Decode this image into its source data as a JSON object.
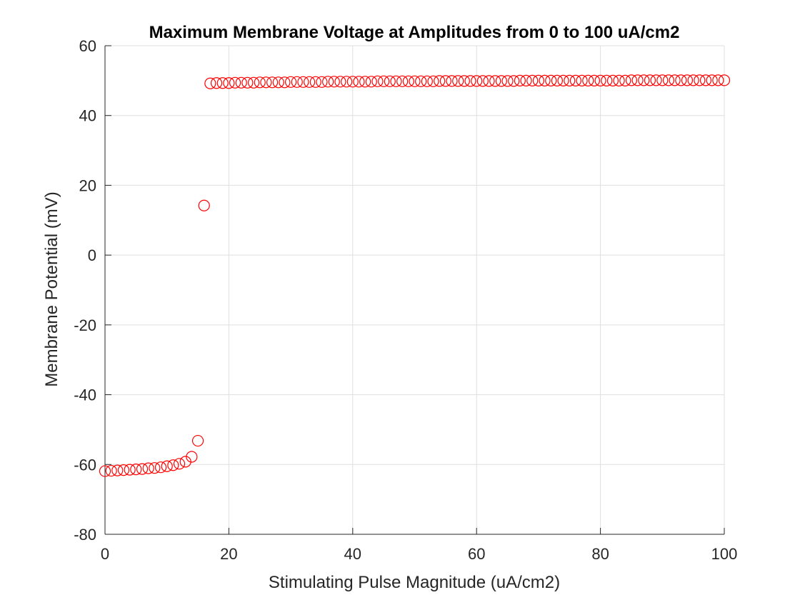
{
  "chart_data": {
    "type": "scatter",
    "title": "Maximum Membrane Voltage at Amplitudes from 0 to 100 uA/cm2",
    "xlabel": "Stimulating Pulse Magnitude (uA/cm2)",
    "ylabel": "Membrane Potential (mV)",
    "xlim": [
      0,
      100
    ],
    "ylim": [
      -80,
      60
    ],
    "xticks": [
      0,
      20,
      40,
      60,
      80,
      100
    ],
    "yticks": [
      -80,
      -60,
      -40,
      -20,
      0,
      20,
      40,
      60
    ],
    "xtick_labels": [
      "0",
      "20",
      "40",
      "60",
      "80",
      "100"
    ],
    "ytick_labels": [
      "-80",
      "-60",
      "-40",
      "-20",
      "0",
      "20",
      "40",
      "60"
    ],
    "grid": true,
    "marker": "circle-open",
    "color": "#ff0000",
    "series": [
      {
        "x": [
          0,
          1,
          2,
          3,
          4,
          5,
          6,
          7,
          8,
          9,
          10,
          11,
          12,
          13,
          14,
          15,
          16,
          17,
          18,
          19,
          20,
          21,
          22,
          23,
          24,
          25,
          26,
          27,
          28,
          29,
          30,
          31,
          32,
          33,
          34,
          35,
          36,
          37,
          38,
          39,
          40,
          41,
          42,
          43,
          44,
          45,
          46,
          47,
          48,
          49,
          50,
          51,
          52,
          53,
          54,
          55,
          56,
          57,
          58,
          59,
          60,
          61,
          62,
          63,
          64,
          65,
          66,
          67,
          68,
          69,
          70,
          71,
          72,
          73,
          74,
          75,
          76,
          77,
          78,
          79,
          80,
          81,
          82,
          83,
          84,
          85,
          86,
          87,
          88,
          89,
          90,
          91,
          92,
          93,
          94,
          95,
          96,
          97,
          98,
          99,
          100
        ],
        "y": [
          -61.9,
          -61.8,
          -61.7,
          -61.6,
          -61.5,
          -61.4,
          -61.3,
          -61.1,
          -61.0,
          -60.8,
          -60.5,
          -60.2,
          -59.8,
          -59.2,
          -57.8,
          -53.2,
          14.2,
          49.2,
          49.3,
          49.3,
          49.3,
          49.4,
          49.4,
          49.4,
          49.4,
          49.5,
          49.5,
          49.5,
          49.5,
          49.5,
          49.6,
          49.6,
          49.6,
          49.6,
          49.6,
          49.6,
          49.7,
          49.7,
          49.7,
          49.7,
          49.7,
          49.7,
          49.7,
          49.7,
          49.8,
          49.8,
          49.8,
          49.8,
          49.8,
          49.8,
          49.8,
          49.8,
          49.8,
          49.8,
          49.9,
          49.9,
          49.9,
          49.9,
          49.9,
          49.9,
          49.9,
          49.9,
          49.9,
          49.9,
          49.9,
          49.9,
          49.9,
          50.0,
          50.0,
          50.0,
          50.0,
          50.0,
          50.0,
          50.0,
          50.0,
          50.0,
          50.0,
          50.0,
          50.0,
          50.0,
          50.0,
          50.0,
          50.0,
          50.0,
          50.0,
          50.1,
          50.1,
          50.1,
          50.1,
          50.1,
          50.1,
          50.1,
          50.1,
          50.1,
          50.1,
          50.1,
          50.1,
          50.1,
          50.1,
          50.1,
          50.1
        ]
      }
    ]
  }
}
